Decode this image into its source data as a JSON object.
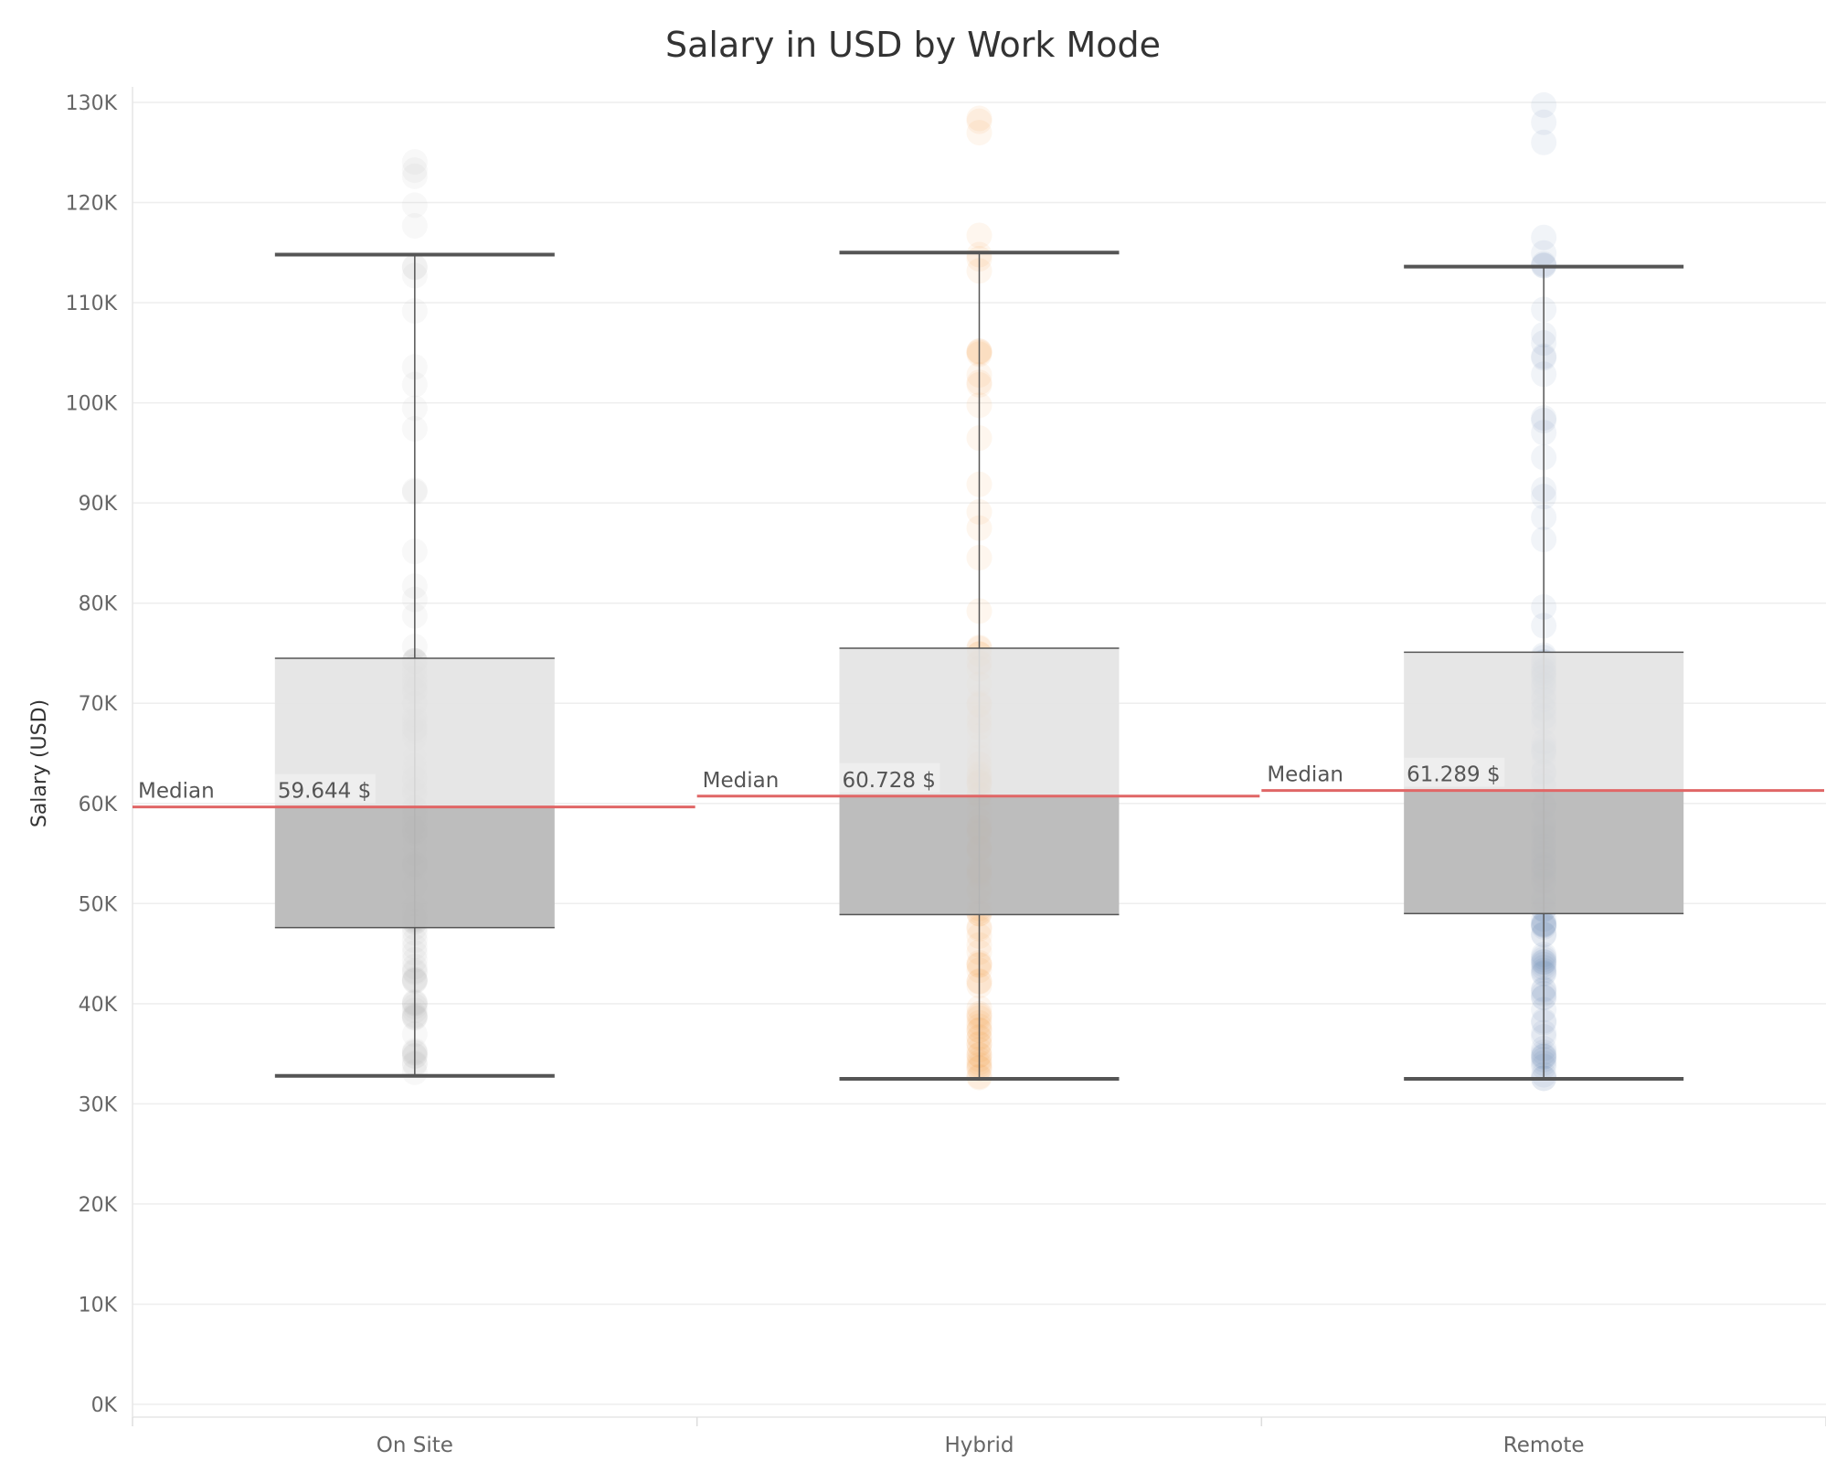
{
  "chart_data": {
    "type": "box",
    "title": "Salary in USD by Work Mode",
    "xlabel": "",
    "ylabel": "Salary (USD)",
    "ylim": [
      0,
      130000
    ],
    "y_ticks": [
      0,
      10000,
      20000,
      30000,
      40000,
      50000,
      60000,
      70000,
      80000,
      90000,
      100000,
      110000,
      120000,
      130000
    ],
    "y_tick_labels": [
      "0K",
      "10K",
      "20K",
      "30K",
      "40K",
      "50K",
      "60K",
      "70K",
      "80K",
      "90K",
      "100K",
      "110K",
      "120K",
      "130K"
    ],
    "grid": true,
    "legend": "none",
    "reference_line_label": "Median",
    "categories": [
      "On Site",
      "Hybrid",
      "Remote"
    ],
    "boxes": [
      {
        "category": "On Site",
        "whisker_low": 32800,
        "q1": 47600,
        "median": 59644,
        "q3": 74500,
        "whisker_high": 114800,
        "median_label": "59.644 $",
        "point_color": "#a6a6a6"
      },
      {
        "category": "Hybrid",
        "whisker_low": 32500,
        "q1": 48900,
        "median": 60728,
        "q3": 75500,
        "whisker_high": 115000,
        "median_label": "60.728 $",
        "point_color": "#f28e2b"
      },
      {
        "category": "Remote",
        "whisker_low": 32500,
        "q1": 49000,
        "median": 61289,
        "q3": 75100,
        "whisker_high": 113600,
        "median_label": "61.289 $",
        "point_color": "#4e79a7"
      }
    ],
    "colors": {
      "box_lower": "#b9b9b9",
      "box_upper": "#e3e3e3",
      "whisker": "#555555",
      "median_line": "#e06666",
      "grid": "#eeeeee"
    }
  }
}
